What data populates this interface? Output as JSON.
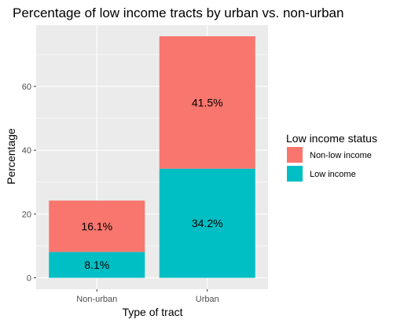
{
  "chart_data": {
    "type": "bar",
    "stacked": true,
    "title": "Percentage of low income tracts by urban vs. non-urban",
    "xlabel": "Type of tract",
    "ylabel": "Percentage",
    "categories": [
      "Non-urban",
      "Urban"
    ],
    "ylim": [
      0,
      76
    ],
    "yticks": [
      0,
      20,
      40,
      60
    ],
    "series": [
      {
        "name": "Low income",
        "values": [
          8.1,
          34.2
        ],
        "labels": [
          "8.1%",
          "34.2%"
        ],
        "color": "#00BFC4"
      },
      {
        "name": "Non-low income",
        "values": [
          16.1,
          41.5
        ],
        "labels": [
          "16.1%",
          "41.5%"
        ],
        "color": "#F8766D"
      }
    ],
    "legend": {
      "title": "Low income status",
      "position": "right",
      "entries": [
        "Non-low income",
        "Low income"
      ]
    },
    "grid": true,
    "panel_background": "#EBEBEB"
  }
}
